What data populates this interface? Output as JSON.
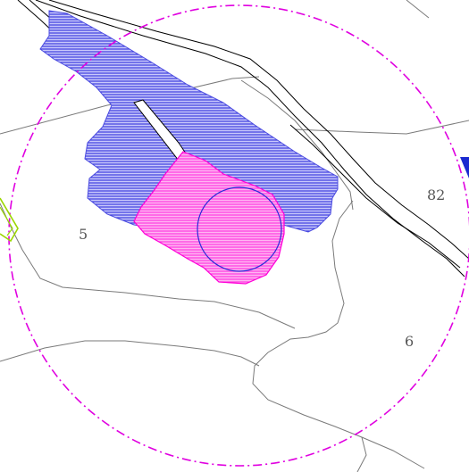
{
  "map": {
    "parcels": [
      {
        "id": "parcel-5",
        "label": "5"
      },
      {
        "id": "parcel-82",
        "label": "82"
      },
      {
        "id": "parcel-6",
        "label": "6"
      }
    ],
    "colors": {
      "background": "#ffffff",
      "parcel_boundary": "#777777",
      "road": "#000000",
      "buffer_circle": "#e000e0",
      "blue_zone": "#4a4ae0",
      "blue_zone_fill": "#9a9af5",
      "pink_zone": "#ff00d8",
      "pink_zone_fill": "#ff7ae8",
      "green_marker": "#9bd700",
      "edge_marker": "#1a2ad0"
    },
    "layers": [
      "parcel-boundaries",
      "road",
      "blue-hatched-zone",
      "pink-hatched-zone",
      "inner-circle",
      "buffer-circle"
    ]
  }
}
